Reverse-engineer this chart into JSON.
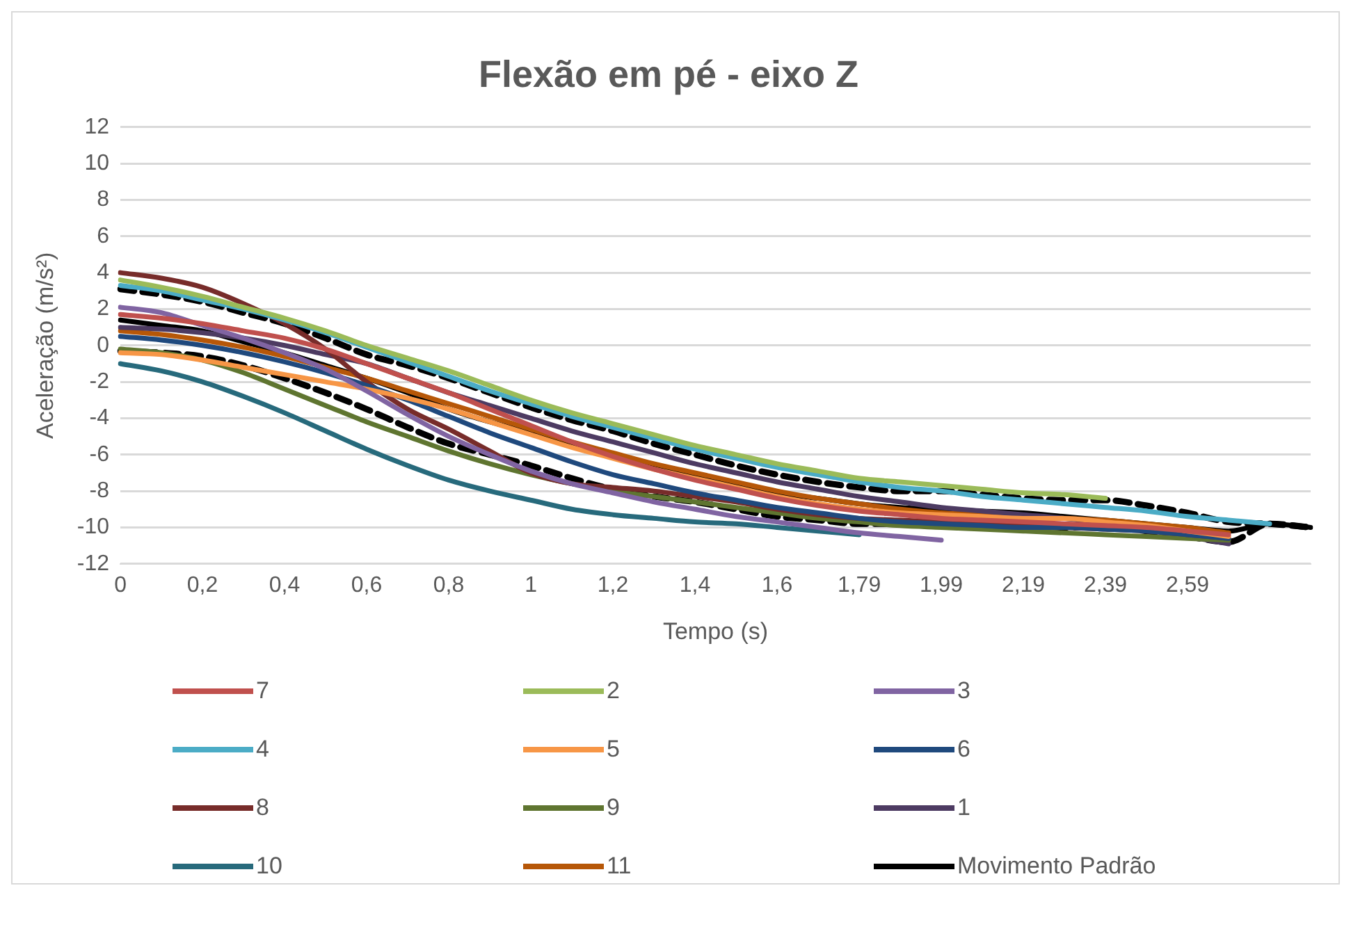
{
  "chart_data": {
    "type": "line",
    "title": "Flexão em pé - eixo Z",
    "xlabel": "Tempo (s)",
    "ylabel": "Aceleração (m/s²)",
    "categories": [
      "0",
      null,
      "0,2",
      null,
      "0,4",
      null,
      "0,6",
      null,
      "0,8",
      null,
      "1",
      null,
      "1,2",
      null,
      "1,4",
      null,
      "1,6",
      null,
      "1,79",
      null,
      "1,99",
      null,
      "2,19",
      null,
      "2,39",
      null,
      "2,59",
      null,
      null,
      null
    ],
    "ylim": [
      -12,
      12
    ],
    "yticks": [
      -12,
      -10,
      -8,
      -6,
      -4,
      -2,
      0,
      2,
      4,
      6,
      8,
      10,
      12
    ],
    "grid": "y",
    "legend": "bottom",
    "marker": "none",
    "series": [
      {
        "name": "7",
        "color": "#c0504d",
        "values": [
          1.7,
          1.5,
          1.2,
          0.8,
          0.4,
          -0.2,
          -1.0,
          -1.8,
          -2.6,
          -3.5,
          -4.4,
          -5.3,
          -6.1,
          -6.8,
          -7.4,
          -7.9,
          -8.4,
          -8.8,
          -9.1,
          -9.3,
          -9.5,
          -9.6,
          -9.7,
          -9.8,
          -9.9,
          -10.0,
          -10.2,
          -10.4,
          null,
          null
        ]
      },
      {
        "name": "2",
        "color": "#9bbb59",
        "values": [
          3.6,
          3.2,
          2.7,
          2.1,
          1.5,
          0.8,
          0.0,
          -0.7,
          -1.4,
          -2.2,
          -3.0,
          -3.7,
          -4.3,
          -4.9,
          -5.5,
          -6.0,
          -6.5,
          -6.9,
          -7.3,
          -7.5,
          -7.7,
          -7.9,
          -8.1,
          -8.2,
          -8.4,
          null,
          null,
          null,
          null,
          null
        ]
      },
      {
        "name": "3",
        "color": "#8064a2",
        "values": [
          2.1,
          1.8,
          1.1,
          0.4,
          -0.4,
          -1.3,
          -2.5,
          -3.8,
          -5.0,
          -6.0,
          -6.9,
          -7.6,
          -8.1,
          -8.6,
          -9.0,
          -9.4,
          -9.7,
          -10.0,
          -10.3,
          -10.5,
          -10.7,
          null,
          null,
          null,
          null,
          null,
          null,
          null,
          null,
          null
        ]
      },
      {
        "name": "4",
        "color": "#4bacc6",
        "values": [
          3.3,
          3.0,
          2.5,
          2.0,
          1.4,
          0.7,
          -0.1,
          -0.9,
          -1.7,
          -2.5,
          -3.2,
          -3.9,
          -4.5,
          -5.1,
          -5.7,
          -6.2,
          -6.7,
          -7.1,
          -7.5,
          -7.8,
          -8.0,
          -8.3,
          -8.5,
          -8.7,
          -8.9,
          -9.1,
          -9.4,
          -9.6,
          -9.8,
          null
        ]
      },
      {
        "name": "5",
        "color": "#f79646",
        "values": [
          -0.4,
          -0.5,
          -0.8,
          -1.2,
          -1.6,
          -2.0,
          -2.4,
          -2.9,
          -3.5,
          -4.2,
          -4.9,
          -5.6,
          -6.2,
          -6.8,
          -7.3,
          -7.8,
          -8.3,
          -8.7,
          -9.0,
          -9.2,
          -9.3,
          -9.4,
          -9.5,
          -9.5,
          -9.7,
          -9.9,
          -10.2,
          -10.5,
          null,
          null
        ]
      },
      {
        "name": "6",
        "color": "#1f497d",
        "values": [
          0.5,
          0.3,
          0.0,
          -0.4,
          -0.9,
          -1.5,
          -2.2,
          -3.0,
          -3.9,
          -4.8,
          -5.6,
          -6.4,
          -7.1,
          -7.6,
          -8.1,
          -8.5,
          -8.9,
          -9.2,
          -9.5,
          -9.7,
          -9.8,
          -9.9,
          -10.0,
          -10.0,
          -10.1,
          -10.2,
          -10.4,
          -10.6,
          null,
          null
        ]
      },
      {
        "name": "8",
        "color": "#772c2a",
        "values": [
          4.0,
          3.7,
          3.2,
          2.3,
          1.2,
          -0.2,
          -2.0,
          -3.5,
          -4.6,
          -5.8,
          -7.0,
          -7.6,
          -7.8,
          -8.0,
          -8.3,
          -8.6,
          -9.0,
          -9.3,
          -9.5,
          -9.6,
          -9.7,
          -9.8,
          -9.9,
          -10.0,
          -10.1,
          -10.2,
          -10.4,
          -10.6,
          null,
          null
        ]
      },
      {
        "name": "9",
        "color": "#5f7530",
        "values": [
          -0.2,
          -0.4,
          -0.8,
          -1.5,
          -2.4,
          -3.3,
          -4.2,
          -5.0,
          -5.8,
          -6.5,
          -7.1,
          -7.6,
          -8.0,
          -8.3,
          -8.6,
          -8.9,
          -9.2,
          -9.5,
          -9.7,
          -9.9,
          -10.0,
          -10.1,
          -10.2,
          -10.3,
          -10.4,
          -10.5,
          -10.6,
          -10.7,
          null,
          null
        ]
      },
      {
        "name": "1",
        "color": "#4d3b62",
        "values": [
          1.0,
          0.9,
          0.7,
          0.4,
          0.0,
          -0.5,
          -1.0,
          -1.8,
          -2.6,
          -3.3,
          -4.0,
          -4.7,
          -5.3,
          -5.9,
          -6.5,
          -7.0,
          -7.5,
          -7.9,
          -8.3,
          -8.6,
          -8.9,
          -9.1,
          -9.3,
          -9.5,
          -9.8,
          -10.1,
          -10.5,
          -10.9,
          null,
          null
        ]
      },
      {
        "name": "10",
        "color": "#276a7c",
        "values": [
          -1.0,
          -1.4,
          -2.0,
          -2.8,
          -3.7,
          -4.7,
          -5.7,
          -6.6,
          -7.4,
          -8.0,
          -8.5,
          -9.0,
          -9.3,
          -9.5,
          -9.7,
          -9.8,
          -10.0,
          -10.2,
          -10.4,
          null,
          null,
          null,
          null,
          null,
          null,
          null,
          null,
          null,
          null,
          null
        ]
      },
      {
        "name": "11",
        "color": "#b65708",
        "values": [
          0.8,
          0.6,
          0.3,
          -0.1,
          -0.6,
          -1.2,
          -1.8,
          -2.5,
          -3.2,
          -3.9,
          -4.6,
          -5.3,
          -5.9,
          -6.5,
          -7.0,
          -7.5,
          -8.0,
          -8.4,
          -8.7,
          -9.0,
          -9.2,
          -9.3,
          -9.4,
          -9.5,
          -9.6,
          -9.8,
          -10.0,
          -10.3,
          null,
          null
        ]
      },
      {
        "name": "Movimento Padrão",
        "color": "#000000",
        "values": [
          1.4,
          1.1,
          0.8,
          0.2,
          -0.4,
          -1.1,
          -1.8,
          -2.6,
          -3.5,
          -4.2,
          -4.8,
          -5.5,
          -6.1,
          -6.6,
          -7.1,
          -7.6,
          -8.1,
          -8.4,
          -8.7,
          -8.9,
          -9.0,
          -9.1,
          -9.2,
          -9.4,
          -9.6,
          -9.8,
          -10.0,
          -10.2,
          -9.8,
          -10.0
        ]
      },
      {
        "color": "#000000",
        "line_style": "dashed",
        "values": [
          3.1,
          2.8,
          2.4,
          1.8,
          1.2,
          0.4,
          -0.5,
          -1.1,
          -1.8,
          -2.6,
          -3.4,
          -4.1,
          -4.7,
          -5.4,
          -6.0,
          -6.6,
          -7.1,
          -7.5,
          -7.8,
          -8.0,
          -8.0,
          -8.2,
          -8.4,
          -8.5,
          -8.5,
          -8.8,
          -9.2,
          -9.7,
          -9.8,
          -10.0
        ]
      },
      {
        "color": "#000000",
        "line_style": "dashed",
        "values": [
          -0.3,
          -0.4,
          -0.6,
          -1.1,
          -1.8,
          -2.6,
          -3.5,
          -4.5,
          -5.4,
          -6.0,
          -6.6,
          -7.3,
          -7.9,
          -8.3,
          -8.6,
          -9.0,
          -9.4,
          -9.6,
          -9.8,
          -9.8,
          -9.7,
          -9.8,
          -9.9,
          -10.0,
          -10.0,
          -10.2,
          -10.5,
          -10.8,
          -9.8,
          -10.0
        ]
      }
    ]
  }
}
